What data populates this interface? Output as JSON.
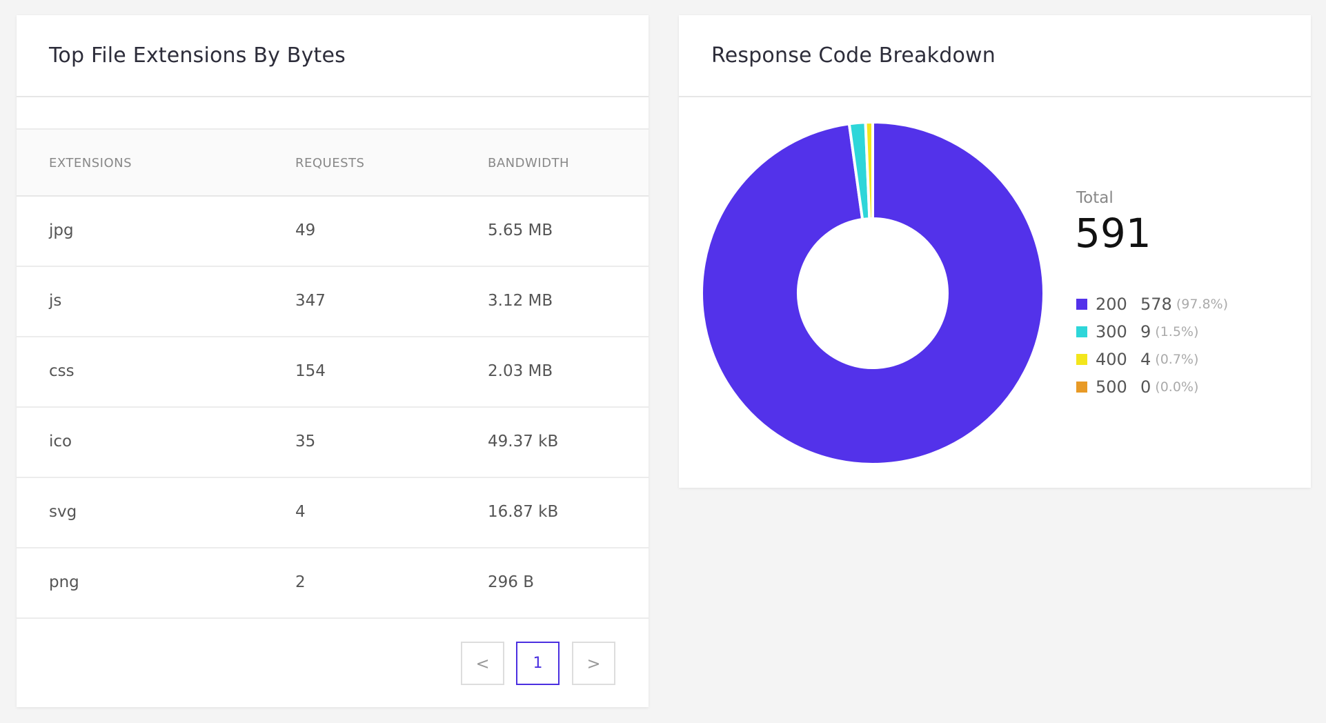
{
  "extensions_card": {
    "title": "Top File Extensions By Bytes",
    "columns": [
      "EXTENSIONS",
      "REQUESTS",
      "BANDWIDTH"
    ],
    "rows": [
      {
        "ext": "jpg",
        "requests": "49",
        "bandwidth": "5.65 MB"
      },
      {
        "ext": "js",
        "requests": "347",
        "bandwidth": "3.12 MB"
      },
      {
        "ext": "css",
        "requests": "154",
        "bandwidth": "2.03 MB"
      },
      {
        "ext": "ico",
        "requests": "35",
        "bandwidth": "49.37 kB"
      },
      {
        "ext": "svg",
        "requests": "4",
        "bandwidth": "16.87 kB"
      },
      {
        "ext": "png",
        "requests": "2",
        "bandwidth": "296 B"
      }
    ],
    "pagination": {
      "prev": "<",
      "current": "1",
      "next": ">"
    }
  },
  "response_card": {
    "title": "Response Code Breakdown",
    "total_label": "Total",
    "total": "591",
    "legend": [
      {
        "code": "200",
        "count": "578",
        "pct": "(97.8%)",
        "value": 578,
        "color": "#5332ea"
      },
      {
        "code": "300",
        "count": "9",
        "pct": "(1.5%)",
        "value": 9,
        "color": "#2ed6d9"
      },
      {
        "code": "400",
        "count": "4",
        "pct": "(0.7%)",
        "value": 4,
        "color": "#f3e61c"
      },
      {
        "code": "500",
        "count": "0",
        "pct": "(0.0%)",
        "value": 0,
        "color": "#e89a26"
      }
    ]
  }
}
